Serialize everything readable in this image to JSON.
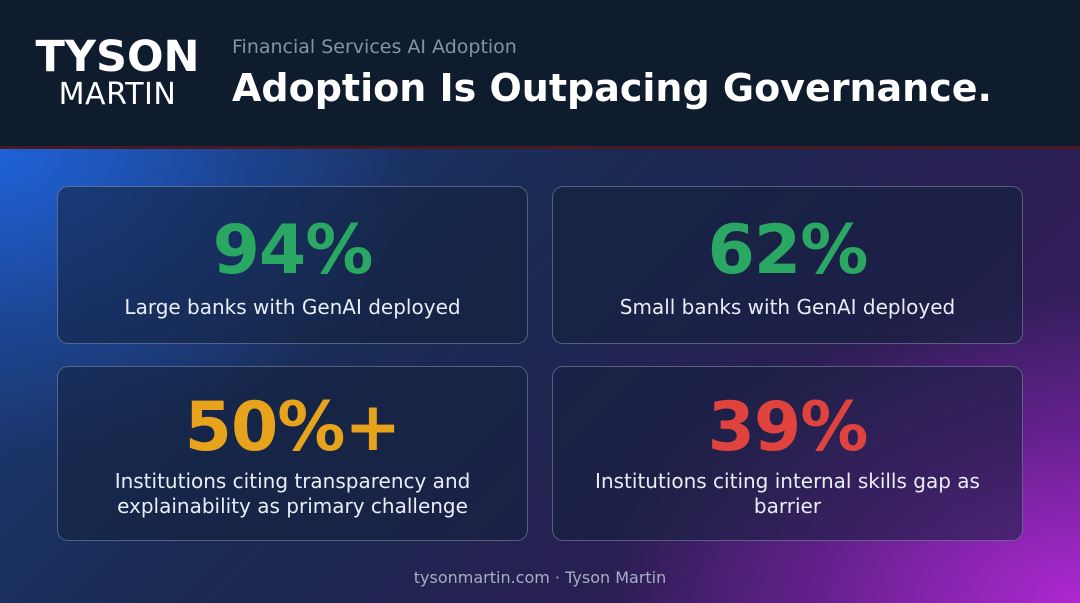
{
  "header": {
    "logo_top": "TYSON",
    "logo_bottom": "MARTIN",
    "subtitle": "Financial Services AI Adoption",
    "title": "Adoption Is Outpacing Governance."
  },
  "stats": [
    {
      "value": "94%",
      "label": "Large banks with GenAI deployed",
      "color": "#2aa763"
    },
    {
      "value": "62%",
      "label": "Small banks with GenAI deployed",
      "color": "#2aa763"
    },
    {
      "value": "50%+",
      "label": "Institutions citing transparency and explainability as primary challenge",
      "color": "#e8a31c"
    },
    {
      "value": "39%",
      "label": "Institutions citing internal skills gap as barrier",
      "color": "#e0433e"
    }
  ],
  "footer": {
    "text": "tysonmartin.com · Tyson Martin"
  },
  "colors": {
    "header_bg": "#0f1c2e",
    "header_divider": "#4a1820",
    "green": "#2aa763",
    "amber": "#e8a31c",
    "red": "#e0433e",
    "gradient_blue": "#1e64dc",
    "gradient_purple": "#af28d2"
  }
}
